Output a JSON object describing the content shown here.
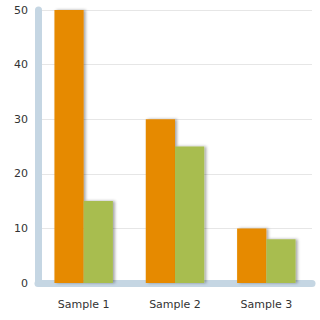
{
  "chart_data": {
    "type": "bar",
    "categories": [
      "Sample 1",
      "Sample 2",
      "Sample 3"
    ],
    "series": [
      {
        "color": "#e68a00",
        "values": [
          50,
          30,
          10
        ]
      },
      {
        "color": "#a8bd4f",
        "values": [
          15,
          25,
          8
        ]
      }
    ],
    "ylim": [
      0,
      50
    ],
    "yticks": [
      0,
      10,
      20,
      30,
      40,
      50
    ],
    "grid": true
  }
}
